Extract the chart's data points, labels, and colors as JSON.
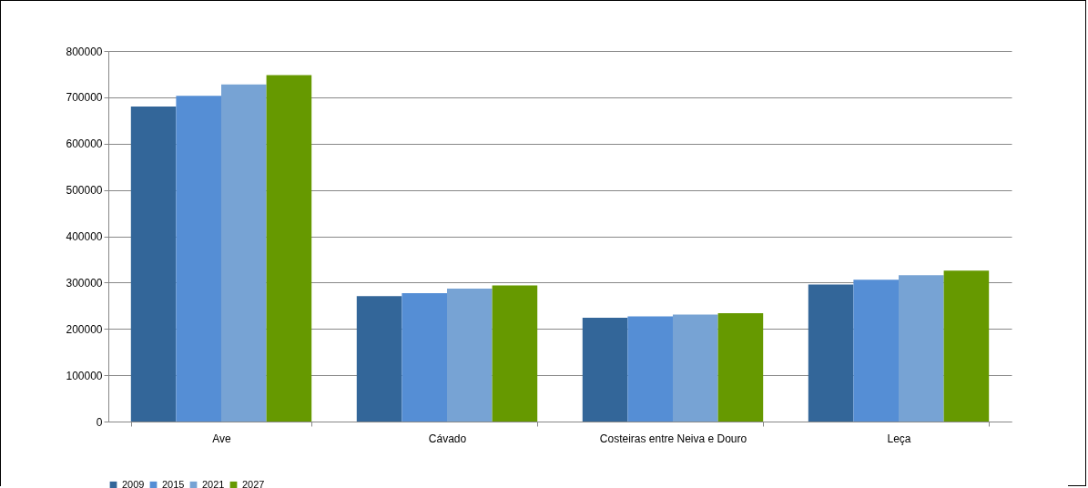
{
  "chart_data": {
    "type": "bar",
    "categories": [
      "Ave",
      "Cávado",
      "Costeiras entre Neiva e Douro",
      "Leça"
    ],
    "series": [
      {
        "name": "2009",
        "color": "#336699",
        "values": [
          680000,
          271000,
          224000,
          296000
        ]
      },
      {
        "name": "2015",
        "color": "#558ed5",
        "values": [
          703000,
          277000,
          227000,
          306000
        ]
      },
      {
        "name": "2021",
        "color": "#77a3d4",
        "values": [
          728000,
          287000,
          231000,
          316000
        ]
      },
      {
        "name": "2027",
        "color": "#669900",
        "values": [
          748000,
          294000,
          234000,
          326000
        ]
      }
    ],
    "ylim": [
      0,
      800000
    ],
    "yticks": [
      0,
      100000,
      200000,
      300000,
      400000,
      500000,
      600000,
      700000,
      800000
    ],
    "grid": "y",
    "legend": "bottom"
  }
}
